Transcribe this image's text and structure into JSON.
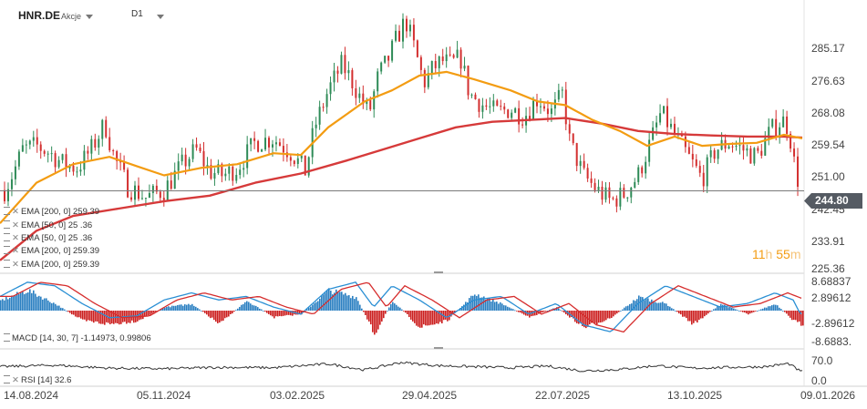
{
  "header": {
    "symbol": "HNR.DE",
    "asset_class": "Akcje",
    "timeframe": "D1"
  },
  "price_axis": {
    "ticks": [
      "285.17",
      "276.63",
      "268.08",
      "259.54",
      "251.00",
      "242.45",
      "233.91",
      "225.36"
    ]
  },
  "last_price": "244.80",
  "countdown": {
    "hours": "11",
    "h": "h",
    "minutes": "55",
    "m": "m"
  },
  "indicators": [
    "EMA [200, 0] 259.39",
    "EMA [50, 0] 25 .36",
    "EMA [50, 0] 25 .36",
    "EMA [200, 0] 259.39",
    "EMA [200, 0] 259.39"
  ],
  "macd": {
    "label": "MACD [14, 30, 7] -1.14973, 0.99806",
    "ticks": [
      "8.68837",
      "2.89612",
      "-2.89612",
      "-8.6883."
    ]
  },
  "rsi": {
    "label": "RSI [14] 32.6",
    "ticks": [
      "70.0",
      "0.0"
    ]
  },
  "x_axis": {
    "ticks": [
      "14.08.2024",
      "05.11.2024",
      "03.02.2025",
      "29.04.2025",
      "22.07.2025",
      "13.10.2025",
      "09.01.2026"
    ]
  },
  "chart_data": [
    {
      "type": "candlestick",
      "title": "HNR.DE",
      "xlabel": "",
      "ylabel": "",
      "ylim": [
        222,
        294
      ],
      "x_range": [
        "2024-08-14",
        "2026-01-09"
      ],
      "ema200": [
        [
          0,
          226
        ],
        [
          40,
          234
        ],
        [
          80,
          238
        ],
        [
          130,
          240
        ],
        [
          180,
          242
        ],
        [
          230,
          243.5
        ],
        [
          280,
          247
        ],
        [
          330,
          249.5
        ],
        [
          380,
          253
        ],
        [
          420,
          256
        ],
        [
          460,
          259
        ],
        [
          500,
          262
        ],
        [
          540,
          263.5
        ],
        [
          580,
          264
        ],
        [
          620,
          264.5
        ],
        [
          660,
          263
        ],
        [
          700,
          261
        ],
        [
          740,
          260.2
        ],
        [
          780,
          259.8
        ],
        [
          820,
          259.5
        ],
        [
          860,
          259.5
        ],
        [
          880,
          259.2
        ]
      ],
      "ema50": [
        [
          0,
          236
        ],
        [
          40,
          247
        ],
        [
          80,
          252
        ],
        [
          120,
          254
        ],
        [
          150,
          251.5
        ],
        [
          180,
          249
        ],
        [
          220,
          251
        ],
        [
          260,
          252
        ],
        [
          300,
          255
        ],
        [
          330,
          254.5
        ],
        [
          360,
          262
        ],
        [
          400,
          269
        ],
        [
          430,
          272
        ],
        [
          460,
          276
        ],
        [
          490,
          277
        ],
        [
          520,
          275
        ],
        [
          560,
          272
        ],
        [
          590,
          269
        ],
        [
          620,
          268
        ],
        [
          650,
          264
        ],
        [
          680,
          261
        ],
        [
          710,
          257
        ],
        [
          740,
          259.5
        ],
        [
          770,
          257
        ],
        [
          800,
          257.5
        ],
        [
          830,
          257.8
        ],
        [
          860,
          260
        ],
        [
          880,
          259
        ]
      ],
      "close_path": [
        [
          5,
          245
        ],
        [
          15,
          250
        ],
        [
          25,
          256
        ],
        [
          40,
          257
        ],
        [
          55,
          255
        ],
        [
          70,
          252
        ],
        [
          85,
          251
        ],
        [
          100,
          256
        ],
        [
          115,
          263
        ],
        [
          125,
          254
        ],
        [
          140,
          246
        ],
        [
          160,
          243
        ],
        [
          180,
          245
        ],
        [
          200,
          252
        ],
        [
          215,
          256
        ],
        [
          230,
          250
        ],
        [
          245,
          249
        ],
        [
          260,
          251
        ],
        [
          280,
          258
        ],
        [
          300,
          259
        ],
        [
          320,
          255
        ],
        [
          335,
          250
        ],
        [
          345,
          262
        ],
        [
          360,
          272
        ],
        [
          375,
          279
        ],
        [
          385,
          275
        ],
        [
          395,
          270
        ],
        [
          405,
          266
        ],
        [
          415,
          276
        ],
        [
          425,
          280
        ],
        [
          435,
          286
        ],
        [
          445,
          291
        ],
        [
          455,
          283
        ],
        [
          465,
          274
        ],
        [
          475,
          278
        ],
        [
          485,
          280
        ],
        [
          495,
          279
        ],
        [
          505,
          281
        ],
        [
          515,
          271
        ],
        [
          530,
          268
        ],
        [
          545,
          266
        ],
        [
          560,
          267
        ],
        [
          575,
          265
        ],
        [
          590,
          270
        ],
        [
          605,
          266
        ],
        [
          617,
          271
        ],
        [
          625,
          258
        ],
        [
          640,
          249
        ],
        [
          655,
          245
        ],
        [
          670,
          242
        ],
        [
          685,
          244
        ],
        [
          700,
          249
        ],
        [
          715,
          259
        ],
        [
          725,
          266
        ],
        [
          740,
          260
        ],
        [
          755,
          254
        ],
        [
          770,
          248
        ],
        [
          785,
          256
        ],
        [
          800,
          258
        ],
        [
          815,
          256
        ],
        [
          830,
          254
        ],
        [
          845,
          261
        ],
        [
          858,
          264
        ],
        [
          865,
          262
        ],
        [
          872,
          251
        ],
        [
          878,
          245
        ]
      ],
      "last": 244.8
    },
    {
      "type": "bar",
      "title": "MACD [14, 30, 7]",
      "xlabel": "",
      "ylabel": "",
      "ylim": [
        -9.5,
        9.5
      ],
      "values": {
        "macd": -1.14973,
        "signal": 0.99806
      },
      "hist_profile": [
        [
          0,
          3
        ],
        [
          30,
          6
        ],
        [
          60,
          2
        ],
        [
          90,
          -3
        ],
        [
          120,
          -4
        ],
        [
          150,
          -3
        ],
        [
          180,
          1
        ],
        [
          210,
          2
        ],
        [
          240,
          -4
        ],
        [
          270,
          3
        ],
        [
          300,
          -2
        ],
        [
          330,
          -1
        ],
        [
          360,
          6
        ],
        [
          390,
          4
        ],
        [
          410,
          -7
        ],
        [
          430,
          3
        ],
        [
          460,
          -5
        ],
        [
          490,
          -3
        ],
        [
          520,
          5
        ],
        [
          550,
          2
        ],
        [
          580,
          -2
        ],
        [
          610,
          1
        ],
        [
          640,
          -5
        ],
        [
          670,
          -2
        ],
        [
          700,
          4
        ],
        [
          730,
          2
        ],
        [
          760,
          -4
        ],
        [
          790,
          2
        ],
        [
          820,
          -1
        ],
        [
          850,
          2
        ],
        [
          870,
          -3
        ],
        [
          878,
          -4
        ]
      ],
      "line_profile": [
        [
          0,
          4
        ],
        [
          30,
          8
        ],
        [
          60,
          7
        ],
        [
          90,
          2
        ],
        [
          120,
          -2
        ],
        [
          150,
          -1.5
        ],
        [
          180,
          3
        ],
        [
          210,
          5
        ],
        [
          240,
          3
        ],
        [
          270,
          4
        ],
        [
          300,
          1
        ],
        [
          330,
          -1
        ],
        [
          360,
          6
        ],
        [
          390,
          8
        ],
        [
          410,
          1
        ],
        [
          430,
          7
        ],
        [
          460,
          3
        ],
        [
          490,
          -2
        ],
        [
          520,
          3
        ],
        [
          550,
          4
        ],
        [
          580,
          -1
        ],
        [
          610,
          2
        ],
        [
          640,
          -4
        ],
        [
          670,
          -6
        ],
        [
          700,
          2
        ],
        [
          730,
          7
        ],
        [
          760,
          4
        ],
        [
          790,
          1
        ],
        [
          820,
          2
        ],
        [
          850,
          5
        ],
        [
          870,
          3
        ],
        [
          878,
          -1
        ]
      ]
    },
    {
      "type": "line",
      "title": "RSI [14]",
      "xlabel": "",
      "ylabel": "",
      "ylim": [
        0,
        100
      ],
      "value": 32.6,
      "profile": [
        [
          0,
          55
        ],
        [
          60,
          62
        ],
        [
          120,
          48
        ],
        [
          180,
          45
        ],
        [
          240,
          52
        ],
        [
          300,
          50
        ],
        [
          360,
          68
        ],
        [
          400,
          40
        ],
        [
          440,
          75
        ],
        [
          480,
          60
        ],
        [
          520,
          55
        ],
        [
          560,
          50
        ],
        [
          600,
          58
        ],
        [
          640,
          35
        ],
        [
          680,
          42
        ],
        [
          720,
          60
        ],
        [
          760,
          48
        ],
        [
          800,
          52
        ],
        [
          840,
          55
        ],
        [
          865,
          70
        ],
        [
          878,
          32.6
        ]
      ]
    }
  ]
}
